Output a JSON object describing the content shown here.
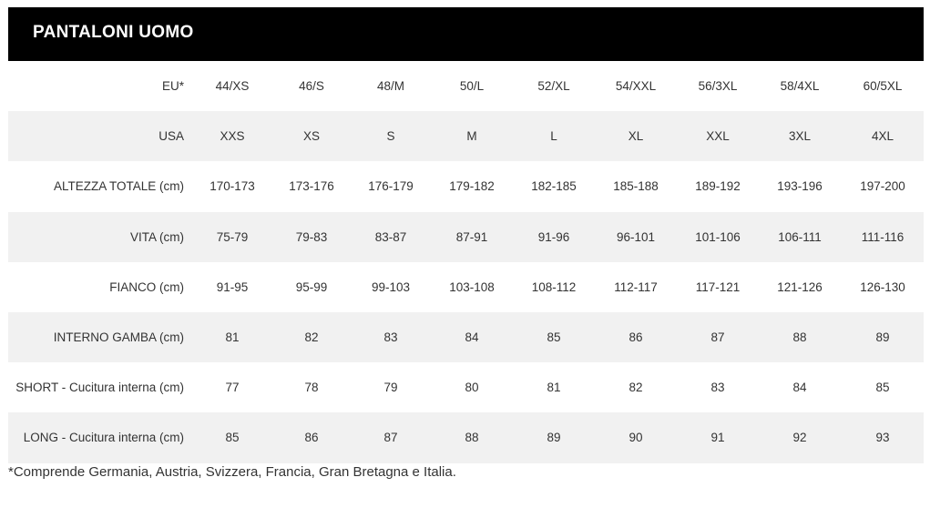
{
  "header": {
    "title": "PANTALONI UOMO"
  },
  "table": {
    "rows": [
      [
        "EU*",
        "44/XS",
        "46/S",
        "48/M",
        "50/L",
        "52/XL",
        "54/XXL",
        "56/3XL",
        "58/4XL",
        "60/5XL"
      ],
      [
        "USA",
        "XXS",
        "XS",
        "S",
        "M",
        "L",
        "XL",
        "XXL",
        "3XL",
        "4XL"
      ],
      [
        "ALTEZZA TOTALE (cm)",
        "170-173",
        "173-176",
        "176-179",
        "179-182",
        "182-185",
        "185-188",
        "189-192",
        "193-196",
        "197-200"
      ],
      [
        "VITA (cm)",
        "75-79",
        "79-83",
        "83-87",
        "87-91",
        "91-96",
        "96-101",
        "101-106",
        "106-111",
        "111-116"
      ],
      [
        "FIANCO (cm)",
        "91-95",
        "95-99",
        "99-103",
        "103-108",
        "108-112",
        "112-117",
        "117-121",
        "121-126",
        "126-130"
      ],
      [
        "INTERNO GAMBA (cm)",
        81,
        82,
        83,
        84,
        85,
        86,
        87,
        88,
        89
      ],
      [
        "SHORT - Cucitura interna (cm)",
        77,
        78,
        79,
        80,
        81,
        82,
        83,
        84,
        85
      ],
      [
        "LONG - Cucitura interna (cm)",
        85,
        86,
        87,
        88,
        89,
        90,
        91,
        92,
        93
      ]
    ]
  },
  "footnote": "*Comprende Germania, Austria, Svizzera, Francia, Gran Bretagna e Italia."
}
